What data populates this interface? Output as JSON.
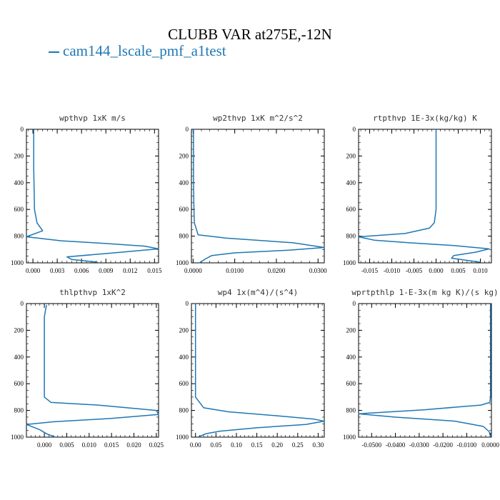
{
  "title": "CLUBB VAR at275E,-12N",
  "legend": [
    {
      "label": "cam144_lscale_pmf_a1test",
      "color": "#1f77b4"
    }
  ],
  "chart_data": [
    {
      "type": "line",
      "title": "wpthvp  1xK m/s",
      "xlim": [
        -0.0008,
        0.0155
      ],
      "xticks": [
        "0.000",
        "0.003",
        "0.006",
        "0.009",
        "0.012",
        "0.015"
      ],
      "ylim": [
        0,
        1000
      ],
      "yticks": [
        "0",
        "200",
        "400",
        "600",
        "800",
        "1000"
      ],
      "series": [
        {
          "x": [
            0.0001,
            0.0001,
            0.0001,
            0.00015,
            0.0002,
            0.0005,
            0.0012,
            -0.0008,
            0.0035,
            0.009,
            0.0138,
            0.0155,
            0.01,
            0.0042,
            0.0048,
            0.008
          ],
          "y": [
            0,
            150,
            300,
            450,
            600,
            700,
            760,
            805,
            835,
            855,
            875,
            895,
            925,
            955,
            975,
            995
          ]
        }
      ]
    },
    {
      "type": "line",
      "title": "wp2thvp  1xK m^2/s^2",
      "xlim": [
        -0.0004,
        0.0315
      ],
      "xticks": [
        "0.0000",
        "0.0100",
        "0.0200",
        "0.0300"
      ],
      "ylim": [
        0,
        1000
      ],
      "yticks": [
        "0",
        "200",
        "400",
        "600",
        "800",
        "1000"
      ],
      "series": [
        {
          "x": [
            0.0001,
            0.0001,
            0.0001,
            0.0002,
            0.0003,
            0.0012,
            0.008,
            0.024,
            0.0315,
            0.023,
            0.01,
            0.0045,
            0.003,
            0.0015
          ],
          "y": [
            0,
            200,
            400,
            600,
            700,
            790,
            815,
            850,
            885,
            905,
            925,
            945,
            970,
            1000
          ]
        }
      ]
    },
    {
      "type": "line",
      "title": "rtpthvp  1E-3x(kg/kg) K",
      "xlim": [
        -0.0175,
        0.0125
      ],
      "xticks": [
        "-0.015",
        "-0.010",
        "-0.005",
        "0.000",
        "0.005",
        "0.010"
      ],
      "ylim": [
        0,
        1000
      ],
      "yticks": [
        "0",
        "200",
        "400",
        "600",
        "800",
        "1000"
      ],
      "series": [
        {
          "x": [
            0.0,
            0.0,
            0.0,
            0.0,
            -0.0004,
            -0.0015,
            -0.007,
            -0.0175,
            -0.014,
            -0.006,
            0.004,
            0.012,
            0.009,
            0.004,
            0.0035,
            0.01
          ],
          "y": [
            0,
            200,
            400,
            600,
            700,
            740,
            780,
            805,
            830,
            850,
            870,
            895,
            920,
            945,
            965,
            995
          ]
        }
      ]
    },
    {
      "type": "line",
      "title": "thlpthvp  1xK^2",
      "xlim": [
        -0.004,
        0.0255
      ],
      "xticks": [
        "0.000",
        "0.005",
        "0.010",
        "0.015",
        "0.020",
        "0.025"
      ],
      "ylim": [
        0,
        1000
      ],
      "yticks": [
        "0",
        "200",
        "400",
        "600",
        "800",
        "1000"
      ],
      "series": [
        {
          "x": [
            0.0005,
            0.0003,
            0.0,
            0.0,
            0.0,
            0.0,
            0.0015,
            0.012,
            0.025,
            0.0255,
            0.015,
            0.002,
            -0.004,
            -0.001,
            0.0005,
            0.0025
          ],
          "y": [
            10,
            40,
            100,
            300,
            500,
            700,
            740,
            760,
            800,
            830,
            860,
            885,
            905,
            945,
            975,
            1000
          ]
        }
      ]
    },
    {
      "type": "line",
      "title": "wp4  1x(m^4)/(s^4)",
      "xlim": [
        -0.01,
        0.315
      ],
      "xticks": [
        "0.00",
        "0.05",
        "0.10",
        "0.15",
        "0.20",
        "0.25",
        "0.30"
      ],
      "ylim": [
        0,
        1000
      ],
      "yticks": [
        "0",
        "200",
        "400",
        "600",
        "800",
        "1000"
      ],
      "series": [
        {
          "x": [
            0.0,
            0.0,
            0.0,
            0.0,
            0.0,
            0.02,
            0.08,
            0.2,
            0.29,
            0.315,
            0.27,
            0.15,
            0.06,
            0.025,
            0.005
          ],
          "y": [
            0,
            200,
            400,
            600,
            700,
            780,
            810,
            840,
            865,
            880,
            905,
            930,
            955,
            975,
            1000
          ]
        }
      ]
    },
    {
      "type": "line",
      "title": "wprtpthlp  1-E-3x(m kg K)/(s kg)",
      "xlim": [
        -0.0555,
        0.0004
      ],
      "xticks": [
        "-0.0500",
        "-0.0400",
        "-0.0300",
        "-0.0200",
        "-0.0100",
        "0.0000"
      ],
      "ylim": [
        0,
        1000
      ],
      "yticks": [
        "0",
        "200",
        "400",
        "600",
        "800",
        "1000"
      ],
      "series": [
        {
          "x": [
            0.0,
            0.0,
            0.0,
            0.0,
            0.0,
            -0.0003,
            -0.004,
            -0.028,
            -0.0555,
            -0.04,
            -0.015,
            -0.003,
            -0.0005,
            0.0
          ],
          "y": [
            0,
            200,
            400,
            600,
            700,
            740,
            760,
            795,
            825,
            850,
            880,
            920,
            960,
            1000
          ]
        }
      ]
    }
  ]
}
